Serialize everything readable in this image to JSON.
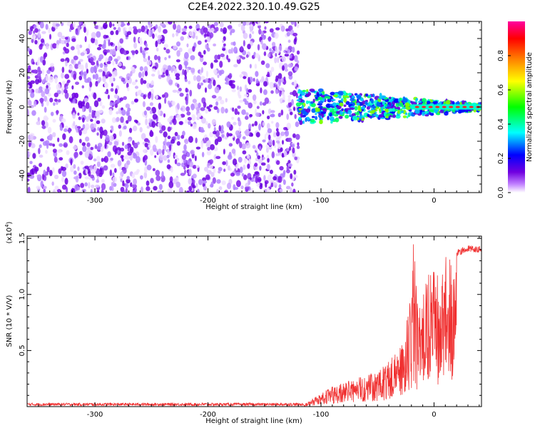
{
  "title": "C2E4.2022.320.10.49.G25",
  "chart_data": [
    {
      "type": "heatmap",
      "name": "spectrogram",
      "xlabel": "Height of straight line (km)",
      "ylabel": "Frequency (Hz)",
      "xlim": [
        -360,
        42
      ],
      "ylim": [
        -50,
        50
      ],
      "xticks": [
        "-300",
        "-200",
        "-100",
        "0"
      ],
      "xtick_values": [
        -300,
        -200,
        -100,
        0
      ],
      "yticks": [
        "40",
        "20",
        "0",
        "-20",
        "-40"
      ],
      "ytick_values": [
        40,
        20,
        0,
        -20,
        -40
      ],
      "colorbar": {
        "label": "Normalized spectral amplitude",
        "ticks": [
          "0.0",
          "0.2",
          "0.4",
          "0.6",
          "0.8"
        ],
        "tick_values": [
          0.0,
          0.2,
          0.4,
          0.6,
          0.8
        ],
        "range": [
          0,
          1
        ],
        "colors": [
          "#ffffff",
          "#c080ff",
          "#7000e0",
          "#0000ff",
          "#00ffff",
          "#00ff00",
          "#ffff00",
          "#ff8000",
          "#ff0000",
          "#ff00a0"
        ]
      },
      "regions": [
        {
          "x_range": [
            -360,
            -120
          ],
          "description_value": "broadband noise, amplitude ~0.1-0.2"
        },
        {
          "x_range": [
            -120,
            42
          ],
          "center_hz": 0,
          "amplitude_range": [
            0.3,
            0.9
          ]
        }
      ]
    },
    {
      "type": "line",
      "name": "snr",
      "xlabel": "Height of straight line (km)",
      "ylabel": "SNR (10 * V/V)",
      "multiplier": "(x10",
      "multiplier_exp": "4",
      "xlim": [
        -360,
        42
      ],
      "ylim": [
        0,
        1.52
      ],
      "xticks": [
        "-300",
        "-200",
        "-100",
        "0"
      ],
      "xtick_values": [
        -300,
        -200,
        -100,
        0
      ],
      "yticks": [
        "0.5",
        "1.0",
        "1.5"
      ],
      "ytick_values": [
        0.5,
        1.0,
        1.5
      ],
      "color": "#f03030",
      "envelope": {
        "x": [
          -360,
          -115,
          -110,
          -100,
          -90,
          -80,
          -70,
          -60,
          -50,
          -40,
          -30,
          -25,
          -20,
          -18,
          -15,
          -10,
          -5,
          0,
          10,
          20,
          30,
          42
        ],
        "y": [
          0.02,
          0.02,
          0.05,
          0.12,
          0.18,
          0.22,
          0.25,
          0.28,
          0.32,
          0.4,
          0.55,
          0.7,
          1.1,
          1.52,
          0.95,
          1.05,
          1.18,
          1.25,
          1.33,
          1.4,
          1.44,
          1.43
        ]
      }
    }
  ]
}
